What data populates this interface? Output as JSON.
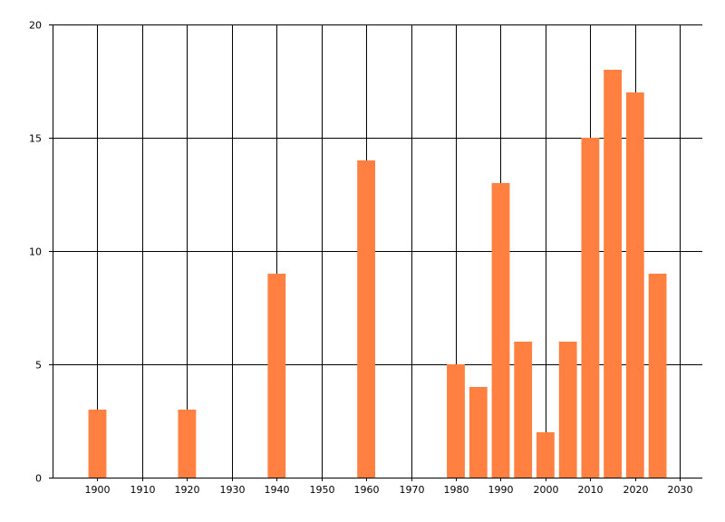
{
  "chart_data": {
    "type": "bar",
    "x_label": "",
    "y_label": "",
    "x_ticks": [
      1900,
      1910,
      1920,
      1930,
      1940,
      1950,
      1960,
      1970,
      1980,
      1990,
      2000,
      2010,
      2020,
      2030
    ],
    "y_ticks": [
      0,
      5,
      10,
      15,
      20
    ],
    "xlim": [
      1890,
      2035
    ],
    "ylim": [
      0,
      20
    ],
    "bar_width_years": 4,
    "grid": true,
    "bar_color": "#FF8040",
    "series": [
      {
        "x": [
          1900,
          1920,
          1940,
          1960,
          1980,
          1985,
          1990,
          1995,
          2000,
          2005,
          2010,
          2015,
          2020,
          2025
        ],
        "values": [
          3,
          3,
          9,
          14,
          5,
          4,
          13,
          6,
          2,
          6,
          15,
          18,
          17,
          9
        ]
      }
    ]
  }
}
